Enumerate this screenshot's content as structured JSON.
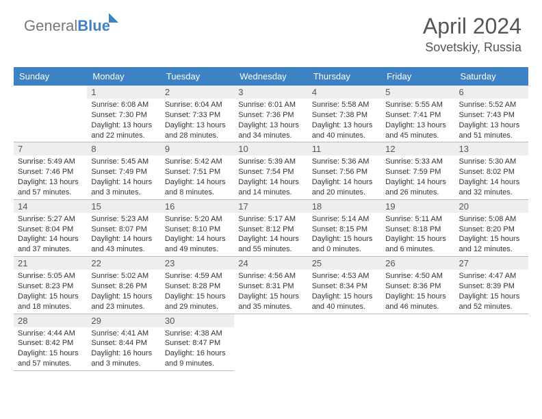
{
  "logo": {
    "general": "General",
    "blue": "Blue"
  },
  "header": {
    "title": "April 2024",
    "location": "Sovetskiy, Russia"
  },
  "colors": {
    "accent": "#3d82c4",
    "header_text": "#ffffff",
    "day_bg": "#eeeeee",
    "text": "#333333",
    "muted": "#555555"
  },
  "weekdays": [
    "Sunday",
    "Monday",
    "Tuesday",
    "Wednesday",
    "Thursday",
    "Friday",
    "Saturday"
  ],
  "weeks": [
    [
      null,
      {
        "n": "1",
        "sr": "6:08 AM",
        "ss": "7:30 PM",
        "dl": "13 hours and 22 minutes."
      },
      {
        "n": "2",
        "sr": "6:04 AM",
        "ss": "7:33 PM",
        "dl": "13 hours and 28 minutes."
      },
      {
        "n": "3",
        "sr": "6:01 AM",
        "ss": "7:36 PM",
        "dl": "13 hours and 34 minutes."
      },
      {
        "n": "4",
        "sr": "5:58 AM",
        "ss": "7:38 PM",
        "dl": "13 hours and 40 minutes."
      },
      {
        "n": "5",
        "sr": "5:55 AM",
        "ss": "7:41 PM",
        "dl": "13 hours and 45 minutes."
      },
      {
        "n": "6",
        "sr": "5:52 AM",
        "ss": "7:43 PM",
        "dl": "13 hours and 51 minutes."
      }
    ],
    [
      {
        "n": "7",
        "sr": "5:49 AM",
        "ss": "7:46 PM",
        "dl": "13 hours and 57 minutes."
      },
      {
        "n": "8",
        "sr": "5:45 AM",
        "ss": "7:49 PM",
        "dl": "14 hours and 3 minutes."
      },
      {
        "n": "9",
        "sr": "5:42 AM",
        "ss": "7:51 PM",
        "dl": "14 hours and 8 minutes."
      },
      {
        "n": "10",
        "sr": "5:39 AM",
        "ss": "7:54 PM",
        "dl": "14 hours and 14 minutes."
      },
      {
        "n": "11",
        "sr": "5:36 AM",
        "ss": "7:56 PM",
        "dl": "14 hours and 20 minutes."
      },
      {
        "n": "12",
        "sr": "5:33 AM",
        "ss": "7:59 PM",
        "dl": "14 hours and 26 minutes."
      },
      {
        "n": "13",
        "sr": "5:30 AM",
        "ss": "8:02 PM",
        "dl": "14 hours and 32 minutes."
      }
    ],
    [
      {
        "n": "14",
        "sr": "5:27 AM",
        "ss": "8:04 PM",
        "dl": "14 hours and 37 minutes."
      },
      {
        "n": "15",
        "sr": "5:23 AM",
        "ss": "8:07 PM",
        "dl": "14 hours and 43 minutes."
      },
      {
        "n": "16",
        "sr": "5:20 AM",
        "ss": "8:10 PM",
        "dl": "14 hours and 49 minutes."
      },
      {
        "n": "17",
        "sr": "5:17 AM",
        "ss": "8:12 PM",
        "dl": "14 hours and 55 minutes."
      },
      {
        "n": "18",
        "sr": "5:14 AM",
        "ss": "8:15 PM",
        "dl": "15 hours and 0 minutes."
      },
      {
        "n": "19",
        "sr": "5:11 AM",
        "ss": "8:18 PM",
        "dl": "15 hours and 6 minutes."
      },
      {
        "n": "20",
        "sr": "5:08 AM",
        "ss": "8:20 PM",
        "dl": "15 hours and 12 minutes."
      }
    ],
    [
      {
        "n": "21",
        "sr": "5:05 AM",
        "ss": "8:23 PM",
        "dl": "15 hours and 18 minutes."
      },
      {
        "n": "22",
        "sr": "5:02 AM",
        "ss": "8:26 PM",
        "dl": "15 hours and 23 minutes."
      },
      {
        "n": "23",
        "sr": "4:59 AM",
        "ss": "8:28 PM",
        "dl": "15 hours and 29 minutes."
      },
      {
        "n": "24",
        "sr": "4:56 AM",
        "ss": "8:31 PM",
        "dl": "15 hours and 35 minutes."
      },
      {
        "n": "25",
        "sr": "4:53 AM",
        "ss": "8:34 PM",
        "dl": "15 hours and 40 minutes."
      },
      {
        "n": "26",
        "sr": "4:50 AM",
        "ss": "8:36 PM",
        "dl": "15 hours and 46 minutes."
      },
      {
        "n": "27",
        "sr": "4:47 AM",
        "ss": "8:39 PM",
        "dl": "15 hours and 52 minutes."
      }
    ],
    [
      {
        "n": "28",
        "sr": "4:44 AM",
        "ss": "8:42 PM",
        "dl": "15 hours and 57 minutes."
      },
      {
        "n": "29",
        "sr": "4:41 AM",
        "ss": "8:44 PM",
        "dl": "16 hours and 3 minutes."
      },
      {
        "n": "30",
        "sr": "4:38 AM",
        "ss": "8:47 PM",
        "dl": "16 hours and 9 minutes."
      },
      null,
      null,
      null,
      null
    ]
  ],
  "labels": {
    "sunrise": "Sunrise:",
    "sunset": "Sunset:",
    "daylight": "Daylight:"
  }
}
